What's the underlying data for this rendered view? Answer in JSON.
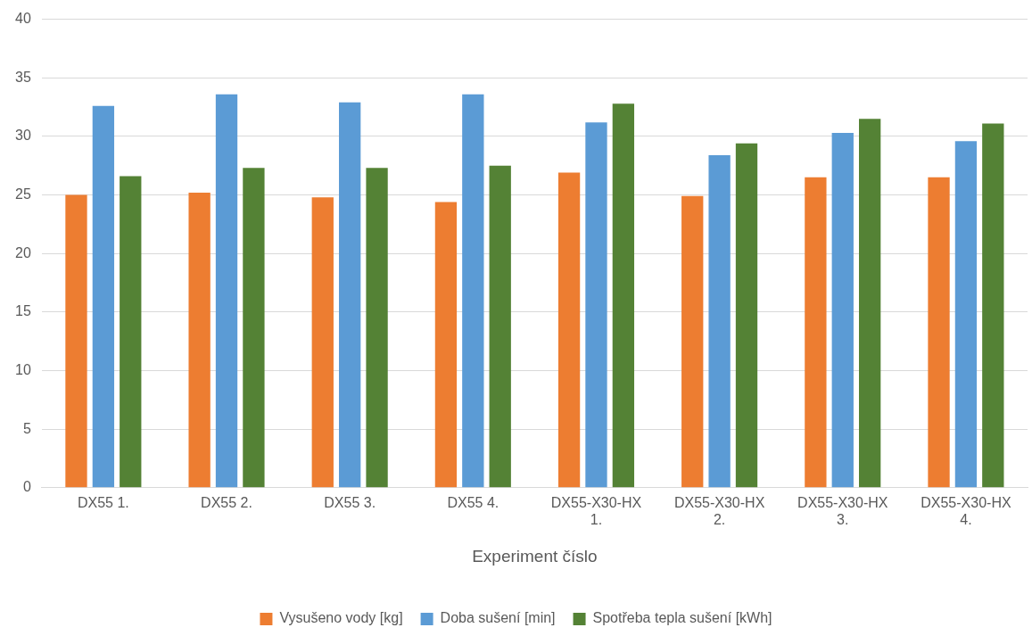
{
  "chart_data": {
    "type": "bar",
    "xlabel": "Experiment číslo",
    "categories": [
      "DX55 1.",
      "DX55 2.",
      "DX55 3.",
      "DX55 4.",
      "DX55-X30-HX 1.",
      "DX55-X30-HX 2.",
      "DX55-X30-HX 3.",
      "DX55-X30-HX 4."
    ],
    "series": [
      {
        "name": "Vysušeno vody [kg]",
        "color": "#ed7d31",
        "values": [
          25.0,
          25.2,
          24.8,
          24.4,
          26.9,
          24.9,
          26.5,
          26.5
        ]
      },
      {
        "name": "Doba sušení [min]",
        "color": "#5b9bd5",
        "values": [
          32.6,
          33.6,
          32.9,
          33.6,
          31.2,
          28.4,
          30.3,
          29.6
        ]
      },
      {
        "name": "Spotřeba tepla sušení [kWh]",
        "color": "#548235",
        "values": [
          26.6,
          27.3,
          27.3,
          27.5,
          32.8,
          29.4,
          31.5,
          31.1
        ]
      }
    ],
    "ylim": [
      0,
      40
    ],
    "yticks": [
      0,
      5,
      10,
      15,
      20,
      25,
      30,
      35,
      40
    ],
    "grid": "y",
    "legend": "bottom"
  }
}
